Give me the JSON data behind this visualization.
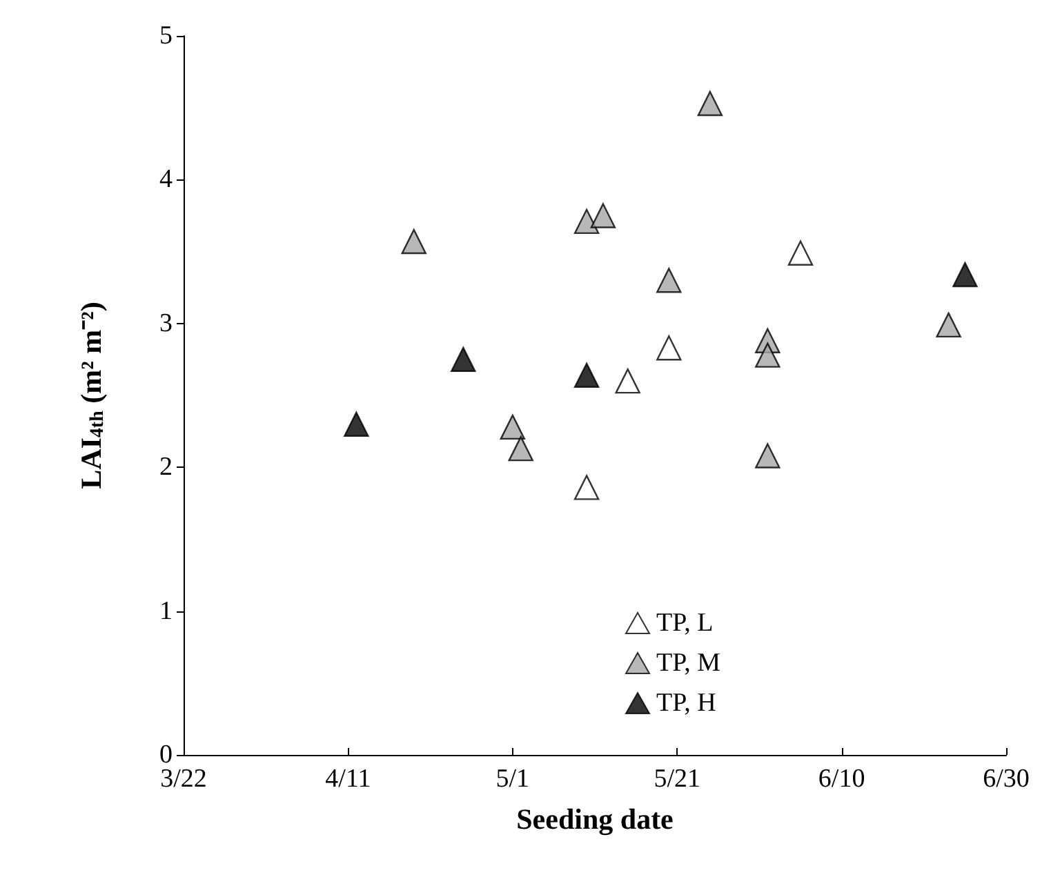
{
  "chart_data": {
    "type": "scatter",
    "xlabel": "Seeding date",
    "ylabel": "LAI$_{4th}$ (m² m⁻²)",
    "xlim": [
      "--03-22",
      "--06-30"
    ],
    "xticks": [
      {
        "value": "--03-22",
        "label": "3/22"
      },
      {
        "value": "--04-11",
        "label": "4/11"
      },
      {
        "value": "--05-01",
        "label": "5/1"
      },
      {
        "value": "--05-21",
        "label": "5/21"
      },
      {
        "value": "--06-10",
        "label": "6/10"
      },
      {
        "value": "--06-30",
        "label": "6/30"
      }
    ],
    "ylim": [
      0,
      5
    ],
    "yticks": [
      0,
      1,
      2,
      3,
      4,
      5
    ],
    "grid": false,
    "legend": "bottom right",
    "marker": "triangle",
    "series": [
      {
        "name": "TP, L",
        "color": "#ffffff",
        "x": [
          "--05-10",
          "--05-15",
          "--05-20",
          "--06-05"
        ],
        "values": [
          1.86,
          2.6,
          2.83,
          3.49
        ]
      },
      {
        "name": "TP, M",
        "color": "#a6a6a6",
        "x": [
          "--04-19",
          "--05-01",
          "--05-02",
          "--05-10",
          "--05-12",
          "--05-20",
          "--05-25",
          "--06-01",
          "--06-01",
          "--06-01",
          "--06-23"
        ],
        "values": [
          3.57,
          2.28,
          2.13,
          3.71,
          3.75,
          3.3,
          4.53,
          2.88,
          2.78,
          2.08,
          2.99
        ]
      },
      {
        "name": "TP, H",
        "color": "#000000",
        "x": [
          "--04-12",
          "--04-25",
          "--05-10",
          "--06-25"
        ],
        "values": [
          2.3,
          2.75,
          2.64,
          3.34
        ]
      }
    ]
  }
}
